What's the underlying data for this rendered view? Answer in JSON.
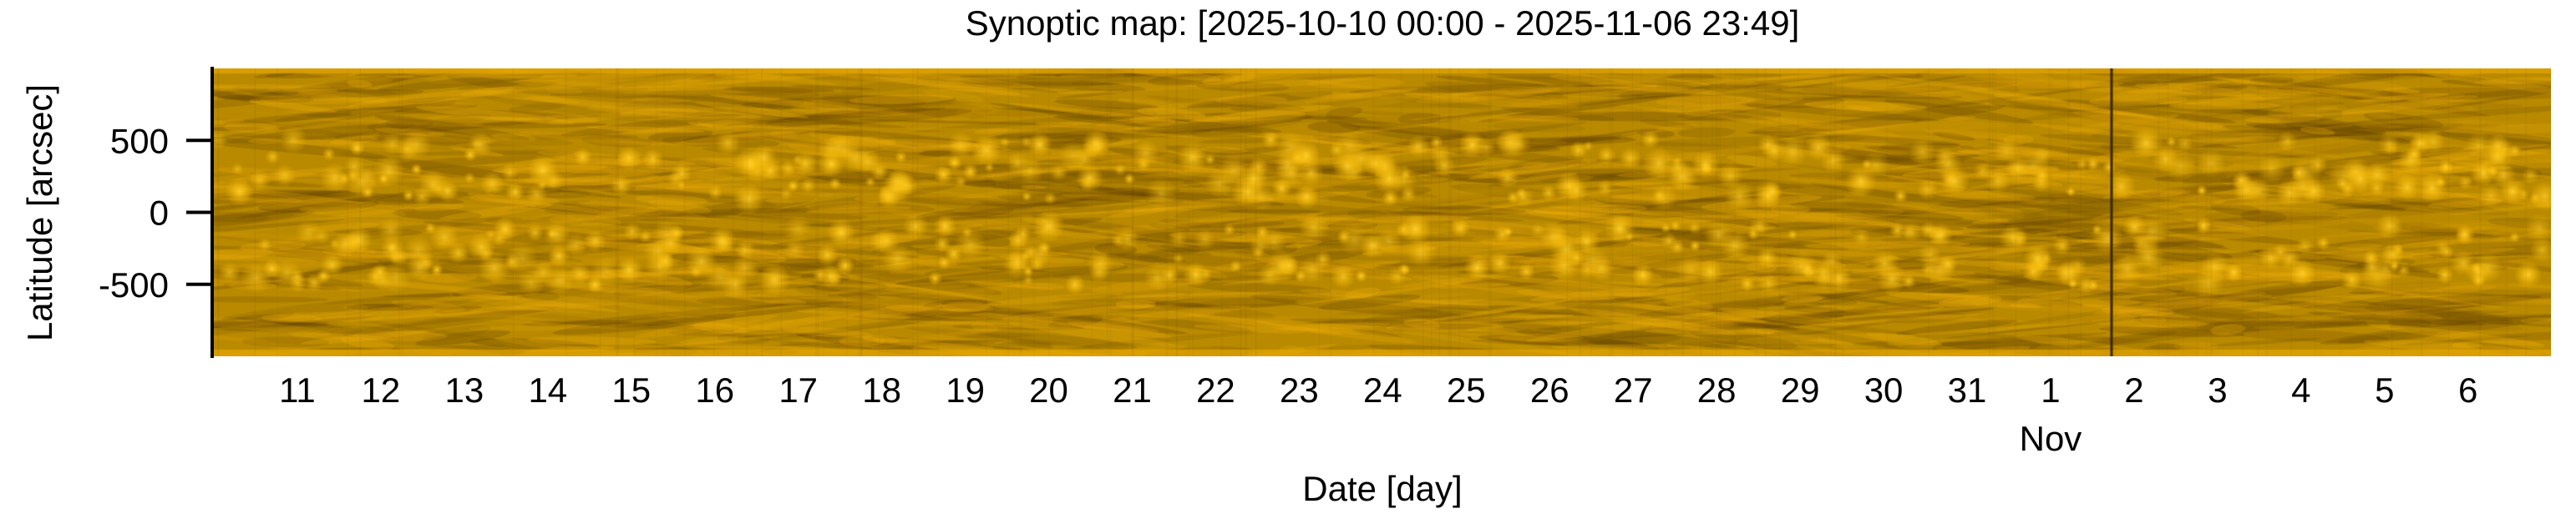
{
  "chart_data": {
    "type": "heatmap",
    "title": "Synoptic map: [2025-10-10 00:00 - 2025-11-06 23:49]",
    "xlabel": "Date [day]",
    "ylabel": "Latitude [arcsec]",
    "x_range": [
      "2025-10-10T00:00",
      "2025-11-06T23:49"
    ],
    "ylim": [
      -1000,
      1000
    ],
    "yticks": [
      500,
      0,
      -500
    ],
    "ytick_labels": [
      "500",
      "0",
      "-500"
    ],
    "xticks": [
      "2025-10-11",
      "2025-10-12",
      "2025-10-13",
      "2025-10-14",
      "2025-10-15",
      "2025-10-16",
      "2025-10-17",
      "2025-10-18",
      "2025-10-19",
      "2025-10-20",
      "2025-10-21",
      "2025-10-22",
      "2025-10-23",
      "2025-10-24",
      "2025-10-25",
      "2025-10-26",
      "2025-10-27",
      "2025-10-28",
      "2025-10-29",
      "2025-10-30",
      "2025-10-31",
      "2025-11-01",
      "2025-11-02",
      "2025-11-03",
      "2025-11-04",
      "2025-11-05",
      "2025-11-06"
    ],
    "xtick_labels": [
      "11",
      "12",
      "13",
      "14",
      "15",
      "16",
      "17",
      "18",
      "19",
      "20",
      "21",
      "22",
      "23",
      "24",
      "25",
      "26",
      "27",
      "28",
      "29",
      "30",
      "31",
      "1",
      "2",
      "3",
      "4",
      "5",
      "6"
    ],
    "month_label": "Nov",
    "month_label_under": "1",
    "data_gap_day": 22.73,
    "colormap": [
      "#6e4f00",
      "#b98a00",
      "#e0a400",
      "#ffc61a"
    ],
    "grid": false
  }
}
